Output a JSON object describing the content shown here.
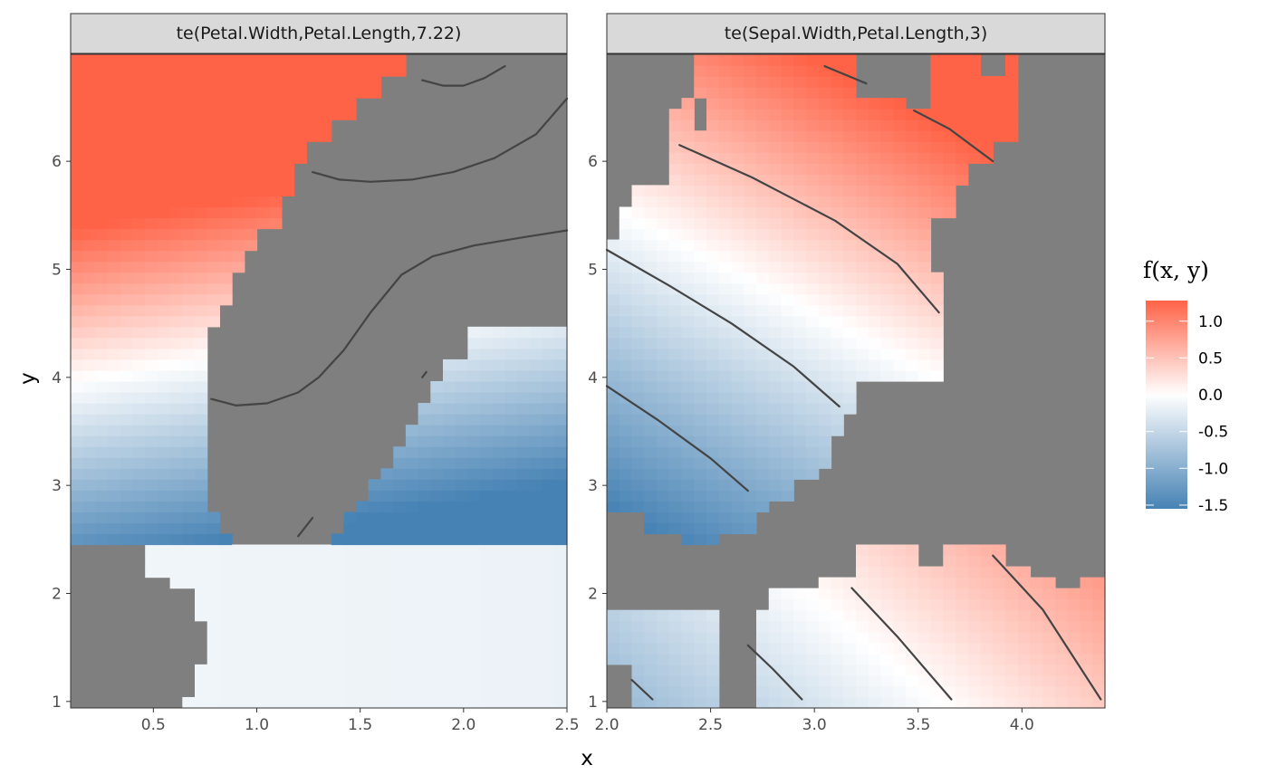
{
  "chart_data": {
    "type": "heatmap",
    "xlabel": "x",
    "ylabel": "y",
    "legend": {
      "title": "f(x, y)",
      "placement": "right",
      "range": [
        -1.55,
        1.28
      ],
      "ticks": [
        1.0,
        0.5,
        0.0,
        -0.5,
        -1.0,
        -1.5
      ],
      "tick_labels": [
        "1.0",
        "0.5",
        "0.0",
        "-0.5",
        "-1.0",
        "-1.5"
      ],
      "colors": {
        "low": "#4682b4",
        "mid": "#ffffff",
        "high": "#ff6347"
      }
    },
    "na_color": "#7f7f7f",
    "contour_color": "#444444",
    "panels": [
      {
        "strip": "te(Petal.Width,Petal.Length,7.22)",
        "xlim": [
          0.1,
          2.5
        ],
        "ylim": [
          0.94,
          6.99
        ],
        "xticks": [
          0.5,
          1.0,
          1.5,
          2.0,
          2.5
        ],
        "xtick_labels": [
          "0.5",
          "1.0",
          "1.5",
          "2.0",
          "2.5"
        ],
        "yticks": [
          1,
          2,
          3,
          4,
          5,
          6
        ],
        "ytick_labels": [
          "1",
          "2",
          "3",
          "4",
          "5",
          "6"
        ],
        "grid": {
          "nx": 40,
          "ny": 60
        },
        "mask_regions": [
          {
            "y": [
              0.94,
              1.0
            ],
            "x": [
              0.1,
              0.64
            ]
          },
          {
            "y": [
              1.0,
              1.3
            ],
            "x": [
              0.1,
              0.7
            ]
          },
          {
            "y": [
              1.3,
              1.7
            ],
            "x": [
              0.1,
              0.76
            ]
          },
          {
            "y": [
              1.7,
              2.0
            ],
            "x": [
              0.1,
              0.7
            ]
          },
          {
            "y": [
              2.0,
              2.2
            ],
            "x": [
              0.1,
              0.56
            ]
          },
          {
            "y": [
              2.2,
              2.45
            ],
            "x": [
              0.1,
              0.46
            ]
          },
          {
            "y": [
              2.45,
              2.6
            ],
            "x": [
              0.88,
              1.34
            ]
          },
          {
            "y": [
              2.6,
              2.75
            ],
            "x": [
              0.82,
              1.4
            ]
          },
          {
            "y": [
              2.75,
              2.9
            ],
            "x": [
              0.76,
              1.46
            ]
          },
          {
            "y": [
              2.9,
              3.05
            ],
            "x": [
              0.76,
              1.52
            ]
          },
          {
            "y": [
              3.05,
              3.2
            ],
            "x": [
              0.76,
              1.58
            ]
          },
          {
            "y": [
              3.2,
              3.4
            ],
            "x": [
              0.76,
              1.64
            ]
          },
          {
            "y": [
              3.4,
              3.6
            ],
            "x": [
              0.76,
              1.7
            ]
          },
          {
            "y": [
              3.6,
              3.8
            ],
            "x": [
              0.76,
              1.76
            ]
          },
          {
            "y": [
              3.8,
              4.0
            ],
            "x": [
              0.76,
              1.84
            ]
          },
          {
            "y": [
              4.0,
              4.2
            ],
            "x": [
              0.76,
              1.92
            ]
          },
          {
            "y": [
              4.2,
              4.5
            ],
            "x": [
              0.76,
              2.02
            ]
          },
          {
            "y": [
              4.5,
              4.7
            ],
            "x": [
              0.82,
              2.5
            ]
          },
          {
            "y": [
              4.7,
              5.0
            ],
            "x": [
              0.88,
              2.5
            ]
          },
          {
            "y": [
              5.0,
              5.2
            ],
            "x": [
              0.94,
              2.5
            ]
          },
          {
            "y": [
              5.2,
              5.4
            ],
            "x": [
              1.0,
              2.5
            ]
          },
          {
            "y": [
              5.4,
              5.7
            ],
            "x": [
              1.1,
              2.5
            ]
          },
          {
            "y": [
              5.7,
              6.0
            ],
            "x": [
              1.16,
              2.5
            ]
          },
          {
            "y": [
              6.0,
              6.2
            ],
            "x": [
              1.22,
              2.5
            ]
          },
          {
            "y": [
              6.2,
              6.4
            ],
            "x": [
              1.34,
              2.5
            ]
          },
          {
            "y": [
              6.4,
              6.55
            ],
            "x": [
              1.46,
              2.5
            ]
          },
          {
            "y": [
              6.55,
              6.75
            ],
            "x": [
              1.58,
              2.5
            ]
          },
          {
            "y": [
              6.75,
              6.99
            ],
            "x": [
              1.7,
              2.5
            ]
          }
        ],
        "surface": {
          "intercept": -0.05,
          "petal_length_coef": 0.9,
          "petal_width_coef": -0.6,
          "center_length": 4.3,
          "center_width": 1.3
        },
        "contours": [
          [
            [
              0.78,
              3.8
            ],
            [
              0.9,
              3.74
            ],
            [
              1.05,
              3.76
            ],
            [
              1.2,
              3.86
            ],
            [
              1.3,
              4.0
            ],
            [
              1.42,
              4.25
            ],
            [
              1.55,
              4.6
            ],
            [
              1.7,
              4.95
            ],
            [
              1.85,
              5.12
            ],
            [
              2.05,
              5.22
            ],
            [
              2.3,
              5.3
            ],
            [
              2.5,
              5.36
            ]
          ],
          [
            [
              1.27,
              5.9
            ],
            [
              1.4,
              5.83
            ],
            [
              1.55,
              5.81
            ],
            [
              1.75,
              5.83
            ],
            [
              1.95,
              5.9
            ],
            [
              2.15,
              6.03
            ],
            [
              2.35,
              6.25
            ],
            [
              2.5,
              6.58
            ]
          ],
          [
            [
              1.8,
              6.75
            ],
            [
              1.9,
              6.7
            ],
            [
              2.0,
              6.7
            ],
            [
              2.1,
              6.77
            ],
            [
              2.2,
              6.88
            ]
          ],
          [
            [
              1.2,
              2.53
            ],
            [
              1.27,
              2.7
            ]
          ],
          [
            [
              1.8,
              4.0
            ],
            [
              1.82,
              4.05
            ]
          ]
        ]
      },
      {
        "strip": "te(Sepal.Width,Petal.Length,3)",
        "xlim": [
          2.0,
          4.4
        ],
        "ylim": [
          0.94,
          6.99
        ],
        "xticks": [
          2.0,
          2.5,
          3.0,
          3.5,
          4.0
        ],
        "xtick_labels": [
          "2.0",
          "2.5",
          "3.0",
          "3.5",
          "4.0"
        ],
        "yticks": [
          1,
          2,
          3,
          4,
          5,
          6
        ],
        "ytick_labels": [
          "1",
          "2",
          "3",
          "4",
          "5",
          "6"
        ],
        "grid": {
          "nx": 40,
          "ny": 60
        },
        "mask_regions": [
          {
            "y": [
              0.94,
              1.3
            ],
            "x": [
              2.0,
              2.12
            ]
          },
          {
            "y": [
              0.94,
              1.8
            ],
            "x": [
              2.54,
              2.72
            ]
          },
          {
            "y": [
              1.8,
              2.0
            ],
            "x": [
              2.0,
              2.8
            ]
          },
          {
            "y": [
              2.0,
              2.2
            ],
            "x": [
              2.0,
              3.0
            ]
          },
          {
            "y": [
              2.2,
              2.45
            ],
            "x": [
              2.0,
              3.2
            ]
          },
          {
            "y": [
              1.8,
              2.45
            ],
            "x": [
              2.0,
              2.6
            ]
          },
          {
            "y": [
              2.2,
              2.45
            ],
            "x": [
              3.0,
              3.2
            ]
          },
          {
            "y": [
              2.3,
              2.45
            ],
            "x": [
              3.5,
              3.6
            ]
          },
          {
            "y": [
              2.3,
              2.45
            ],
            "x": [
              3.95,
              4.4
            ]
          },
          {
            "y": [
              2.0,
              2.15
            ],
            "x": [
              4.15,
              4.3
            ]
          },
          {
            "y": [
              2.15,
              2.3
            ],
            "x": [
              4.05,
              4.4
            ]
          },
          {
            "y": [
              2.45,
              2.6
            ],
            "x": [
              2.0,
              2.36
            ],
            "invert": false
          },
          {
            "y": [
              2.45,
              2.6
            ],
            "x": [
              2.54,
              4.4
            ]
          },
          {
            "y": [
              2.6,
              2.8
            ],
            "x": [
              2.0,
              2.18
            ]
          },
          {
            "y": [
              2.6,
              2.8
            ],
            "x": [
              2.72,
              4.4
            ]
          },
          {
            "y": [
              2.8,
              2.9
            ],
            "x": [
              2.78,
              4.4
            ]
          },
          {
            "y": [
              2.9,
              3.05
            ],
            "x": [
              2.9,
              4.4
            ]
          },
          {
            "y": [
              3.05,
              3.2
            ],
            "x": [
              3.02,
              4.4
            ]
          },
          {
            "y": [
              3.2,
              3.5
            ],
            "x": [
              3.08,
              4.4
            ]
          },
          {
            "y": [
              3.5,
              3.7
            ],
            "x": [
              3.14,
              4.4
            ]
          },
          {
            "y": [
              3.7,
              4.0
            ],
            "x": [
              3.2,
              4.4
            ]
          },
          {
            "y": [
              4.0,
              4.6
            ],
            "x": [
              3.62,
              4.4
            ]
          },
          {
            "y": [
              4.6,
              5.0
            ],
            "x": [
              3.62,
              4.4
            ]
          },
          {
            "y": [
              5.0,
              5.5
            ],
            "x": [
              3.56,
              4.4
            ]
          },
          {
            "y": [
              5.3,
              5.6
            ],
            "x": [
              2.0,
              2.06
            ]
          },
          {
            "y": [
              5.6,
              5.8
            ],
            "x": [
              2.0,
              2.12
            ]
          },
          {
            "y": [
              5.5,
              5.8
            ],
            "x": [
              3.68,
              4.4
            ]
          },
          {
            "y": [
              5.8,
              6.0
            ],
            "x": [
              3.74,
              4.4
            ]
          },
          {
            "y": [
              5.8,
              6.99
            ],
            "x": [
              2.0,
              2.3
            ]
          },
          {
            "y": [
              6.0,
              6.2
            ],
            "x": [
              3.86,
              4.4
            ]
          },
          {
            "y": [
              6.2,
              6.99
            ],
            "x": [
              4.04,
              4.4
            ]
          },
          {
            "y": [
              6.5,
              6.99
            ],
            "x": [
              2.3,
              2.36
            ]
          },
          {
            "y": [
              6.6,
              6.99
            ],
            "x": [
              2.3,
              2.44
            ]
          },
          {
            "y": [
              6.3,
              6.6
            ],
            "x": [
              2.44,
              2.5
            ]
          },
          {
            "y": [
              6.6,
              6.99
            ],
            "x": [
              3.2,
              3.44
            ]
          },
          {
            "y": [
              6.5,
              6.99
            ],
            "x": [
              3.44,
              3.56
            ]
          },
          {
            "y": [
              6.8,
              6.99
            ],
            "x": [
              3.8,
              3.92
            ]
          },
          {
            "y": [
              6.2,
              6.99
            ],
            "x": [
              3.98,
              4.4
            ]
          }
        ],
        "surface": {
          "intercept": 0.0,
          "petal_length_coef": 0.55,
          "sepal_width_coef": 0.55,
          "center_length": 4.6,
          "center_width": 3.0
        },
        "contours": [
          [
            [
              2.0,
              5.18
            ],
            [
              2.3,
              4.85
            ],
            [
              2.6,
              4.5
            ],
            [
              2.9,
              4.1
            ],
            [
              3.12,
              3.73
            ]
          ],
          [
            [
              2.0,
              3.92
            ],
            [
              2.25,
              3.6
            ],
            [
              2.5,
              3.25
            ],
            [
              2.68,
              2.95
            ]
          ],
          [
            [
              2.35,
              6.15
            ],
            [
              2.7,
              5.85
            ],
            [
              3.1,
              5.45
            ],
            [
              3.4,
              5.05
            ],
            [
              3.6,
              4.6
            ]
          ],
          [
            [
              3.05,
              6.88
            ],
            [
              3.25,
              6.72
            ]
          ],
          [
            [
              3.48,
              6.47
            ],
            [
              3.65,
              6.3
            ],
            [
              3.86,
              6.0
            ]
          ],
          [
            [
              2.12,
              1.2
            ],
            [
              2.22,
              1.02
            ]
          ],
          [
            [
              2.68,
              1.52
            ],
            [
              2.8,
              1.3
            ],
            [
              2.94,
              1.02
            ]
          ],
          [
            [
              3.18,
              2.05
            ],
            [
              3.4,
              1.6
            ],
            [
              3.66,
              1.02
            ]
          ],
          [
            [
              3.86,
              2.35
            ],
            [
              4.1,
              1.85
            ],
            [
              4.38,
              1.02
            ]
          ]
        ]
      }
    ]
  }
}
